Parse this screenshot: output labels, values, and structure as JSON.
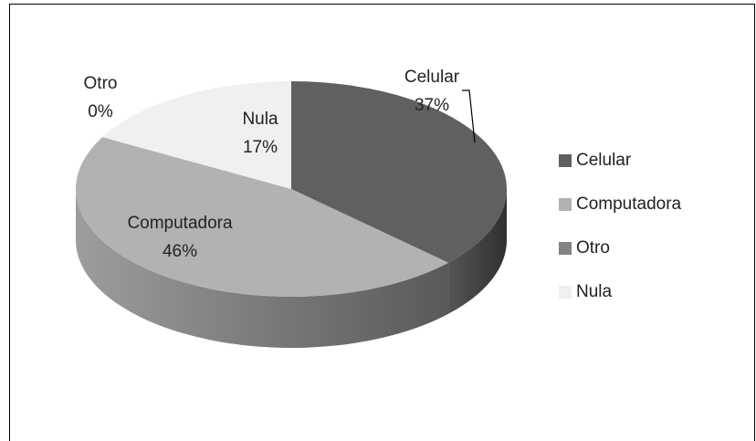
{
  "chart_data": {
    "type": "pie3d",
    "categories": [
      "Celular",
      "Computadora",
      "Otro",
      "Nula"
    ],
    "values": [
      37,
      46,
      0,
      17
    ],
    "value_labels": [
      "37%",
      "46%",
      "0%",
      "17%"
    ],
    "colors": [
      "#606060",
      "#b2b2b2",
      "#838383",
      "#f0f0f0"
    ],
    "legend": "right"
  }
}
